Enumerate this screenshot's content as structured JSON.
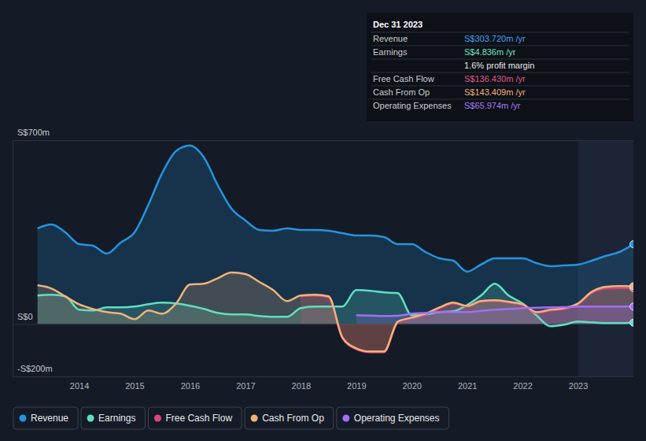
{
  "chart_data": {
    "type": "area",
    "x": [
      2013.25,
      2013.5,
      2013.75,
      2014,
      2014.25,
      2014.5,
      2014.75,
      2015,
      2015.25,
      2015.5,
      2015.75,
      2016,
      2016.25,
      2016.5,
      2016.75,
      2017,
      2017.25,
      2017.5,
      2017.75,
      2018,
      2018.25,
      2018.5,
      2018.75,
      2019,
      2019.25,
      2019.5,
      2019.75,
      2020,
      2020.25,
      2020.5,
      2020.75,
      2021,
      2021.25,
      2021.5,
      2021.75,
      2022,
      2022.25,
      2022.5,
      2022.75,
      2023,
      2023.25,
      2023.5,
      2023.75,
      2024
    ],
    "series": [
      {
        "name": "Revenue",
        "color": "#2394df",
        "values": [
          364,
          379,
          349,
          304,
          298,
          268,
          310,
          349,
          454,
          575,
          659,
          680,
          635,
          529,
          439,
          394,
          358,
          355,
          364,
          358,
          358,
          355,
          346,
          337,
          337,
          331,
          304,
          304,
          274,
          250,
          241,
          199,
          226,
          250,
          250,
          250,
          232,
          220,
          223,
          226,
          241,
          259,
          274,
          303.72
        ]
      },
      {
        "name": "Earnings",
        "color": "#5fdfc2",
        "values": [
          108,
          111,
          105,
          54,
          51,
          63,
          63,
          66,
          75,
          81,
          78,
          69,
          57,
          42,
          36,
          36,
          30,
          27,
          27,
          60,
          66,
          66,
          66,
          129,
          126,
          120,
          117,
          33,
          36,
          45,
          48,
          72,
          108,
          153,
          108,
          78,
          33,
          -9,
          -3,
          9,
          6,
          3,
          3,
          4.836
        ]
      },
      {
        "name": "Free Cash Flow",
        "color": "#d9477a",
        "values": [
          null,
          null,
          null,
          null,
          null,
          null,
          null,
          null,
          null,
          null,
          null,
          null,
          null,
          null,
          null,
          null,
          null,
          null,
          null,
          105,
          108,
          102,
          -54,
          -96,
          -108,
          -108,
          6,
          21,
          36,
          60,
          78,
          66,
          84,
          87,
          81,
          72,
          42,
          51,
          57,
          75,
          118,
          135,
          137,
          136.43
        ]
      },
      {
        "name": "Cash From Op",
        "color": "#f2b27a",
        "values": [
          147,
          135,
          105,
          75,
          57,
          45,
          39,
          18,
          51,
          39,
          78,
          150,
          153,
          174,
          196,
          190,
          160,
          129,
          87,
          108,
          111,
          105,
          -51,
          -93,
          -105,
          -105,
          9,
          24,
          39,
          63,
          81,
          69,
          87,
          90,
          84,
          75,
          45,
          54,
          60,
          78,
          123,
          141,
          144,
          143.409
        ]
      },
      {
        "name": "Operating Expenses",
        "color": "#a66cf6",
        "values": [
          null,
          null,
          null,
          null,
          null,
          null,
          null,
          null,
          null,
          null,
          null,
          null,
          null,
          null,
          null,
          null,
          null,
          null,
          null,
          null,
          null,
          null,
          null,
          33,
          32,
          30,
          31,
          39,
          42,
          45,
          45,
          45,
          50,
          54,
          57,
          60,
          62,
          63,
          64,
          66,
          66,
          66,
          66,
          65.974
        ]
      }
    ],
    "xlim": [
      2012.8,
      2024
    ],
    "xticks": [
      2014,
      2015,
      2016,
      2017,
      2018,
      2019,
      2020,
      2021,
      2022,
      2023
    ],
    "ylim": [
      -200,
      700
    ],
    "yticks": [
      {
        "value": -200,
        "label": "-S$200m"
      },
      {
        "value": 0,
        "label": "S$0"
      },
      {
        "value": 700,
        "label": "S$700m"
      }
    ],
    "grid": true,
    "legend": "bottom-left",
    "shaded_range": [
      2023,
      2024
    ],
    "tooltip": {
      "title": "Dec 31 2023",
      "rows": [
        {
          "label": "Revenue",
          "text": "S$303.720m /yr",
          "color": "#3ea3f2"
        },
        {
          "label": "Earnings",
          "text": "S$4.836m /yr",
          "color": "#6ce6c8"
        },
        {
          "text": "1.6% profit margin",
          "color": "#e8eaed"
        },
        {
          "label": "Free Cash Flow",
          "text": "S$136.430m /yr",
          "color": "#e0558a"
        },
        {
          "label": "Cash From Op",
          "text": "S$143.409m /yr",
          "color": "#f2b27a"
        },
        {
          "label": "Operating Expenses",
          "text": "S$65.974m /yr",
          "color": "#a878f7"
        }
      ]
    }
  }
}
